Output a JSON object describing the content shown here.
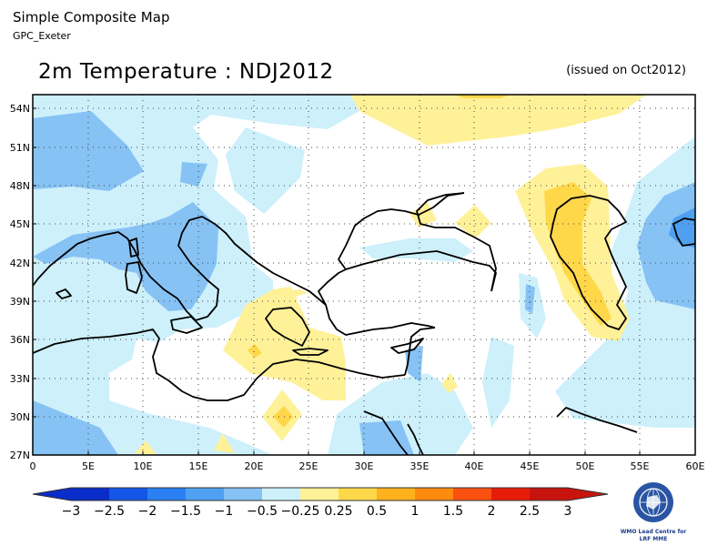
{
  "header": {
    "title": "Simple Composite Map",
    "subtitle": "GPC_Exeter"
  },
  "map": {
    "title": "2m Temperature : NDJ2012",
    "issued": "(issued on Oct2012)",
    "lat_labels": [
      "54N",
      "51N",
      "48N",
      "45N",
      "42N",
      "39N",
      "36N",
      "33N",
      "30N",
      "27N"
    ],
    "lon_labels": [
      "0",
      "5E",
      "10E",
      "15E",
      "20E",
      "25E",
      "30E",
      "35E",
      "40E",
      "45E",
      "50E",
      "55E",
      "60E"
    ],
    "extent": {
      "lon": [
        0,
        60
      ],
      "lat": [
        27,
        55
      ]
    }
  },
  "colorbar": {
    "labels": [
      "−3",
      "−2.5",
      "−2",
      "−1.5",
      "−1",
      "−0.5",
      "−0.25",
      "0.25",
      "0.5",
      "1",
      "1.5",
      "2",
      "2.5",
      "3"
    ],
    "colors": [
      "#0a2cc8",
      "#1356e8",
      "#2a80f2",
      "#4fa0f0",
      "#86c2f4",
      "#cdf0fb",
      "#ffffff",
      "#fff198",
      "#ffd84a",
      "#ffb21e",
      "#ff8a10",
      "#fa5010",
      "#e81c0a",
      "#c8140e"
    ]
  },
  "logo": {
    "line1": "WMO Lead Centre for",
    "line2": "LRF MME"
  }
}
